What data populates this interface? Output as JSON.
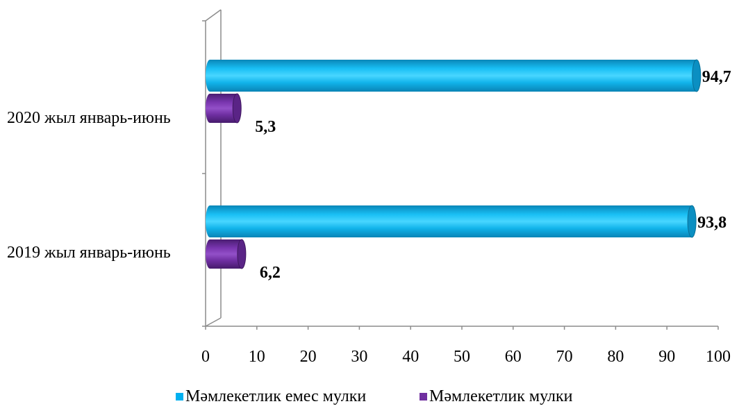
{
  "chart_data": {
    "type": "bar",
    "orientation": "horizontal",
    "style": "3d-cylinder",
    "categories": [
      "2020 жыл январь-июнь",
      "2019 жыл январь-июнь"
    ],
    "series": [
      {
        "name": "Мәмлекетлик емес мулки",
        "color": "#00B0F0",
        "values": [
          94.7,
          93.8
        ],
        "labels": [
          "94,7",
          "93,8"
        ]
      },
      {
        "name": "Мәмлекетлик мулки",
        "color": "#7030A0",
        "values": [
          5.3,
          6.2
        ],
        "labels": [
          "5,3",
          "6,2"
        ]
      }
    ],
    "xlim": [
      0,
      100
    ],
    "xticks": [
      "0",
      "10",
      "20",
      "30",
      "40",
      "50",
      "60",
      "70",
      "80",
      "90",
      "100"
    ],
    "grid": false,
    "legend": "bottom"
  }
}
